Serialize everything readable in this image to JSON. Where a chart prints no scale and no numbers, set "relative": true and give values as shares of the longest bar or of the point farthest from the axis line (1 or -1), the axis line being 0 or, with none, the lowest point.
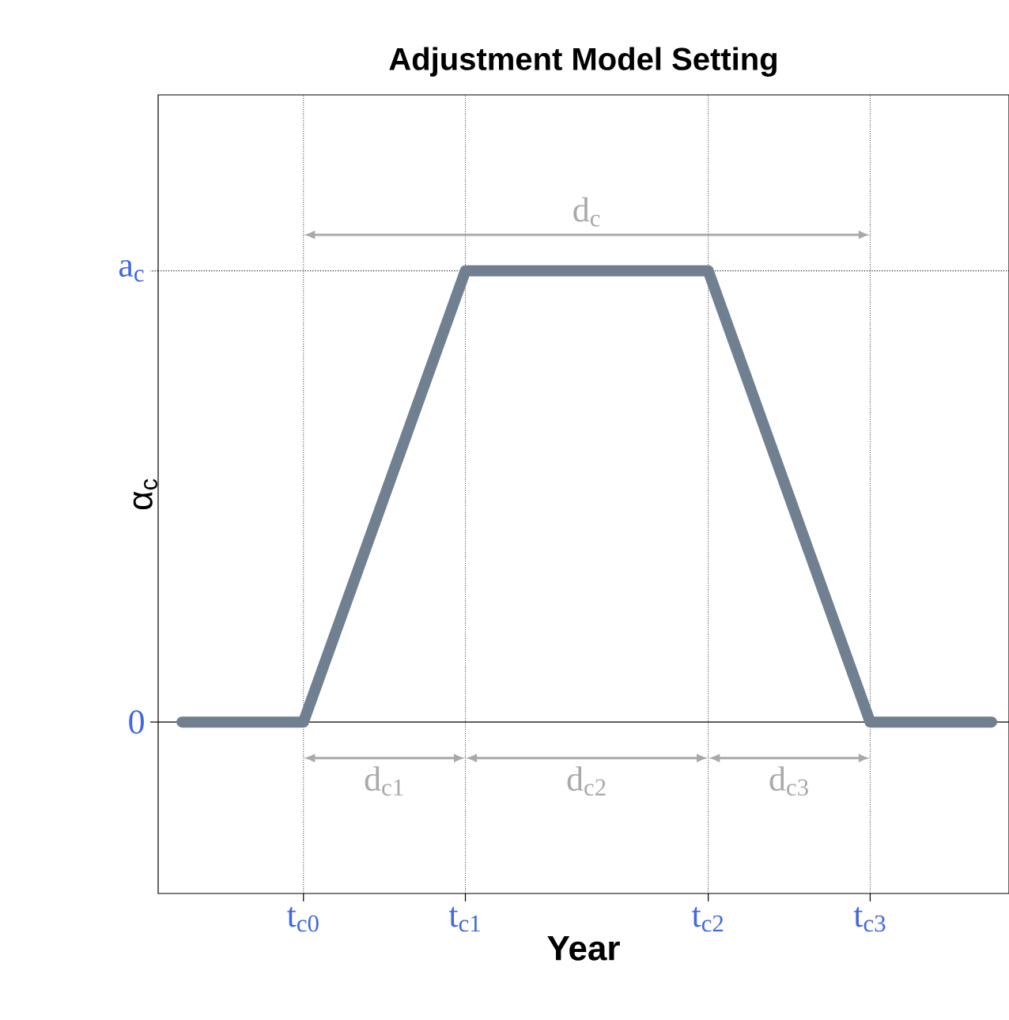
{
  "chart_data": {
    "type": "line",
    "title": "Adjustment Model Setting",
    "xlabel": "Year",
    "ylabel": "α$_{c}$",
    "relative": true,
    "categories": [
      null,
      null,
      null,
      "t$_{c0}$",
      null,
      null,
      null,
      "t$_{c1}$",
      null,
      null,
      null,
      null,
      null,
      "t$_{c2}$",
      null,
      null,
      null,
      "t$_{c3}$",
      null,
      null,
      null
    ],
    "series": [
      {
        "color": "#708090",
        "values": [
          0,
          0,
          0,
          0,
          0.25,
          0.5,
          0.75,
          1,
          1,
          1,
          1,
          1,
          1,
          1,
          0.75,
          0.5,
          0.25,
          0,
          0,
          0,
          0
        ]
      }
    ],
    "grid": "x",
    "ref_lines": [
      {
        "axis": "y",
        "value": 1,
        "line_style": "dotted",
        "label": "a$_{c}$"
      },
      {
        "axis": "y",
        "value": 0,
        "line_style": "solid",
        "label": "0"
      }
    ],
    "annotations": [
      "d$_{c}$",
      "d$_{c1}$",
      "d$_{c2}$",
      "d$_{c3}$"
    ]
  }
}
